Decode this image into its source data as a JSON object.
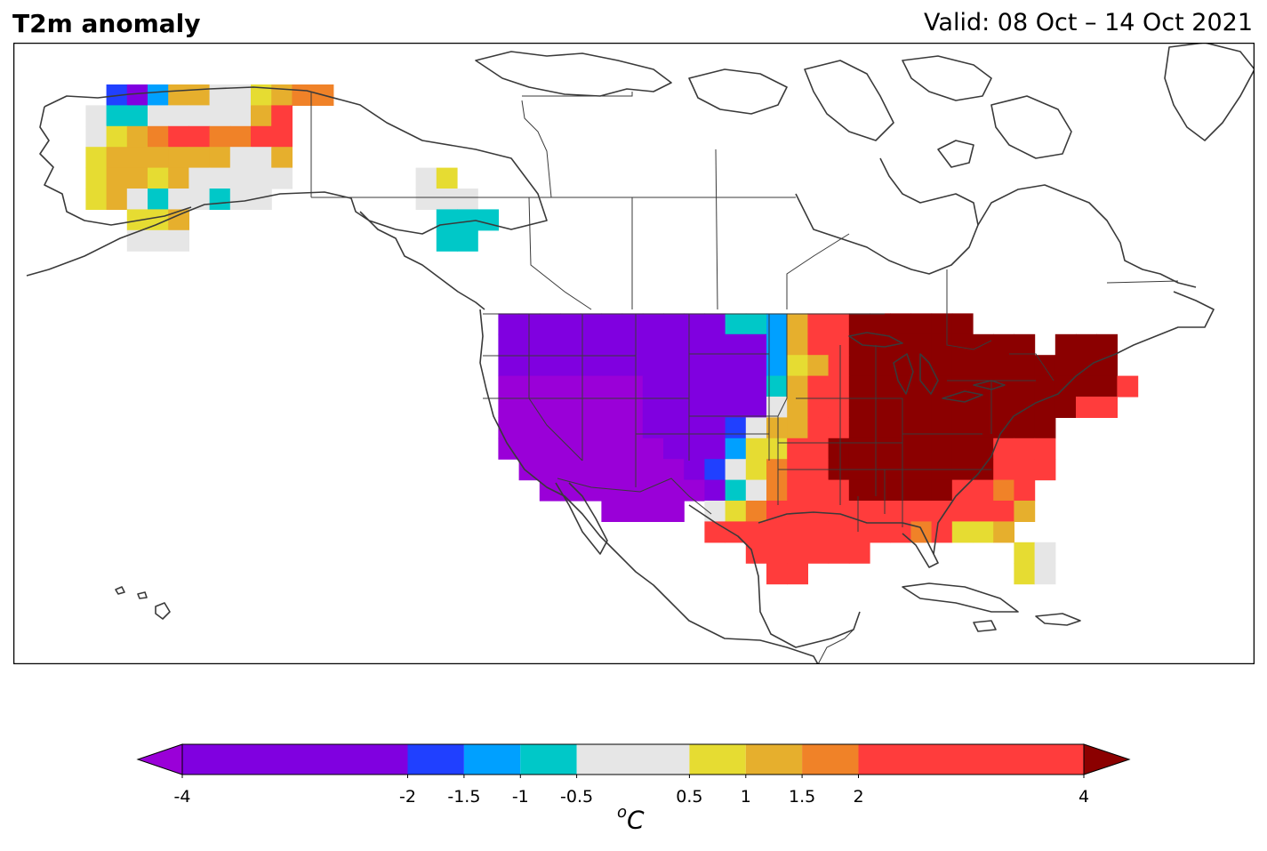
{
  "title_left": "T2m anomaly",
  "title_right": "Valid: 08 Oct – 14 Oct 2021",
  "units": {
    "sup": "o",
    "main": "C"
  },
  "colorbar": {
    "boundaries": [
      -4,
      -2,
      -1.5,
      -1,
      -0.5,
      0.5,
      1,
      1.5,
      2,
      4
    ],
    "tick_labels": [
      "-4",
      "-2",
      "-1.5",
      "-1",
      "-0.5",
      "0.5",
      "1",
      "1.5",
      "2",
      "4"
    ],
    "under_color": "#9a00d8",
    "over_color": "#8b0000",
    "bin_colors": [
      "#8000e0",
      "#2040ff",
      "#00a0ff",
      "#00c8c8",
      "#e6e6e6",
      "#e6dc32",
      "#e6af2d",
      "#f08228",
      "#ff3c3c"
    ]
  },
  "anomaly_key": {
    "P": "#9a00d8",
    "V": "#8000e0",
    "B": "#2040ff",
    "S": "#00a0ff",
    "T": "#00c8c8",
    "G": "#e6e6e6",
    "Y": "#e6dc32",
    "O": "#e6af2d",
    "A": "#f08228",
    "R": "#ff3c3c",
    "D": "#8b0000"
  },
  "anomaly_grid": [
    "...BVSOOGGYOAA..........................................",
    "..GTTGGGGGOR............................................",
    "..GYOARRAARR............................................",
    "..YOOOOOOGGO............................................",
    "..YOOYOGGGGG......GY....................................",
    "..YOGTGGTGG.......GGG...................................",
    "....YYO............TTT..................................",
    "....GGG............TT...................................",
    "........................................................",
    "........................................................",
    "........................................................",
    "......................VVVVVVVVVVVTTSORRDDDDDD...........",
    "......................VVVVVVVVVVVVVSORRDDDDDDDDD.DDD....",
    "......................VVVVVVVVVVVVVSYORDDDDDDDDDDDDD....",
    "......................PPPPPPPVVVVVVTORRDDDDDDDDDDDDDR...",
    "......................PPPPPPPVVVVVVGORRDDDDDDDDDDDRR....",
    "......................PPPPPPPVVVVBGOORRDDDDDDDDDD.......",
    "......................PPPPPPPPVVVSYYRRDDDDDDDDRRR.......",
    ".......................PPPPPPPPVBGYARRDDDDDDDDRRR.......",
    "........................PPPPPPPPVTGARRRDDDDDRRAR........",
    "...........................PPPP.GYARRRRRRRRRRRRO........",
    "................................RRRRRRRRRRARYYO.........",
    "..................................RRRRRR.......YG.......",
    "...................................RR..........YG......."
  ]
}
